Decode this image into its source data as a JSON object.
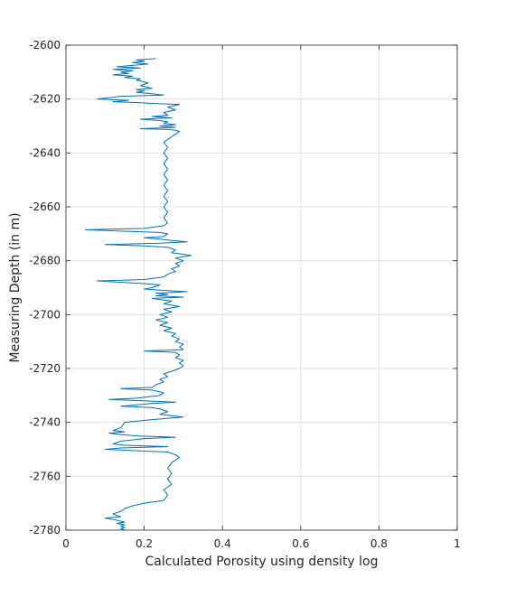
{
  "chart_data": {
    "type": "line",
    "title": "",
    "xlabel": "Calculated Porosity using density log",
    "ylabel": "Measuring Depth (in m)",
    "xlim": [
      0,
      1
    ],
    "ylim": [
      -2780,
      -2600
    ],
    "xticks": [
      "0",
      "0.2",
      "0.4",
      "0.6",
      "0.8",
      "1"
    ],
    "yticks": [
      "-2600",
      "-2620",
      "-2640",
      "-2660",
      "-2680",
      "-2700",
      "-2720",
      "-2740",
      "-2760",
      "-2780"
    ],
    "grid": true,
    "box": true,
    "legend": "none",
    "series": [
      {
        "color": "#0072BD",
        "points": [
          [
            0.23,
            -2605
          ],
          [
            0.18,
            -2605.5
          ],
          [
            0.2,
            -2606
          ],
          [
            0.17,
            -2606.5
          ],
          [
            0.21,
            -2607
          ],
          [
            0.13,
            -2608
          ],
          [
            0.19,
            -2608.5
          ],
          [
            0.12,
            -2609
          ],
          [
            0.17,
            -2609.5
          ],
          [
            0.14,
            -2610
          ],
          [
            0.16,
            -2610.5
          ],
          [
            0.12,
            -2611
          ],
          [
            0.17,
            -2611.5
          ],
          [
            0.15,
            -2612
          ],
          [
            0.19,
            -2612.5
          ],
          [
            0.18,
            -2613
          ],
          [
            0.21,
            -2614
          ],
          [
            0.19,
            -2615
          ],
          [
            0.22,
            -2616
          ],
          [
            0.18,
            -2616.5
          ],
          [
            0.2,
            -2617
          ],
          [
            0.18,
            -2617.5
          ],
          [
            0.22,
            -2618
          ],
          [
            0.25,
            -2618.5
          ],
          [
            0.14,
            -2619
          ],
          [
            0.08,
            -2620
          ],
          [
            0.16,
            -2620.5
          ],
          [
            0.12,
            -2621
          ],
          [
            0.18,
            -2621.3
          ],
          [
            0.22,
            -2621.6
          ],
          [
            0.29,
            -2622
          ],
          [
            0.26,
            -2623
          ],
          [
            0.28,
            -2624
          ],
          [
            0.25,
            -2625
          ],
          [
            0.26,
            -2626
          ],
          [
            0.22,
            -2626.5
          ],
          [
            0.27,
            -2627
          ],
          [
            0.19,
            -2627.5
          ],
          [
            0.24,
            -2628
          ],
          [
            0.26,
            -2628.5
          ],
          [
            0.25,
            -2629
          ],
          [
            0.28,
            -2629.5
          ],
          [
            0.24,
            -2630
          ],
          [
            0.28,
            -2630.5
          ],
          [
            0.19,
            -2631
          ],
          [
            0.26,
            -2631.3
          ],
          [
            0.28,
            -2631.6
          ],
          [
            0.29,
            -2632
          ],
          [
            0.27,
            -2634
          ],
          [
            0.25,
            -2636
          ],
          [
            0.26,
            -2638
          ],
          [
            0.25,
            -2640
          ],
          [
            0.26,
            -2642
          ],
          [
            0.25,
            -2644
          ],
          [
            0.26,
            -2646
          ],
          [
            0.25,
            -2648
          ],
          [
            0.26,
            -2650
          ],
          [
            0.25,
            -2652
          ],
          [
            0.26,
            -2654
          ],
          [
            0.25,
            -2656
          ],
          [
            0.26,
            -2658
          ],
          [
            0.25,
            -2660
          ],
          [
            0.26,
            -2662
          ],
          [
            0.25,
            -2664
          ],
          [
            0.26,
            -2666
          ],
          [
            0.25,
            -2667
          ],
          [
            0.2,
            -2668
          ],
          [
            0.05,
            -2668.5
          ],
          [
            0.14,
            -2669
          ],
          [
            0.24,
            -2669.5
          ],
          [
            0.26,
            -2670
          ],
          [
            0.25,
            -2671
          ],
          [
            0.2,
            -2671.5
          ],
          [
            0.24,
            -2672
          ],
          [
            0.27,
            -2672.5
          ],
          [
            0.31,
            -2673
          ],
          [
            0.24,
            -2673.5
          ],
          [
            0.1,
            -2674
          ],
          [
            0.2,
            -2674.5
          ],
          [
            0.26,
            -2675
          ],
          [
            0.28,
            -2676
          ],
          [
            0.27,
            -2677
          ],
          [
            0.32,
            -2678
          ],
          [
            0.28,
            -2679
          ],
          [
            0.3,
            -2680
          ],
          [
            0.28,
            -2681
          ],
          [
            0.29,
            -2682
          ],
          [
            0.27,
            -2683
          ],
          [
            0.28,
            -2684
          ],
          [
            0.26,
            -2685
          ],
          [
            0.25,
            -2686
          ],
          [
            0.2,
            -2687
          ],
          [
            0.08,
            -2687.5
          ],
          [
            0.14,
            -2688
          ],
          [
            0.2,
            -2688.5
          ],
          [
            0.24,
            -2689
          ],
          [
            0.22,
            -2690
          ],
          [
            0.2,
            -2690.5
          ],
          [
            0.25,
            -2691
          ],
          [
            0.31,
            -2691.5
          ],
          [
            0.23,
            -2692
          ],
          [
            0.26,
            -2692.5
          ],
          [
            0.23,
            -2693
          ],
          [
            0.3,
            -2693.5
          ],
          [
            0.22,
            -2694
          ],
          [
            0.27,
            -2695
          ],
          [
            0.25,
            -2696
          ],
          [
            0.29,
            -2697
          ],
          [
            0.25,
            -2698
          ],
          [
            0.27,
            -2699
          ],
          [
            0.24,
            -2700
          ],
          [
            0.26,
            -2701
          ],
          [
            0.23,
            -2702
          ],
          [
            0.26,
            -2703
          ],
          [
            0.24,
            -2704
          ],
          [
            0.27,
            -2705
          ],
          [
            0.25,
            -2706
          ],
          [
            0.28,
            -2707
          ],
          [
            0.27,
            -2708
          ],
          [
            0.29,
            -2709
          ],
          [
            0.28,
            -2710
          ],
          [
            0.3,
            -2711
          ],
          [
            0.29,
            -2712
          ],
          [
            0.3,
            -2713
          ],
          [
            0.2,
            -2713.5
          ],
          [
            0.28,
            -2714
          ],
          [
            0.29,
            -2715
          ],
          [
            0.28,
            -2716
          ],
          [
            0.3,
            -2717
          ],
          [
            0.29,
            -2718
          ],
          [
            0.3,
            -2719
          ],
          [
            0.29,
            -2720
          ],
          [
            0.27,
            -2721
          ],
          [
            0.25,
            -2722
          ],
          [
            0.26,
            -2723
          ],
          [
            0.24,
            -2724
          ],
          [
            0.25,
            -2725
          ],
          [
            0.23,
            -2726
          ],
          [
            0.22,
            -2727
          ],
          [
            0.14,
            -2727.5
          ],
          [
            0.22,
            -2728
          ],
          [
            0.25,
            -2729
          ],
          [
            0.24,
            -2730
          ],
          [
            0.18,
            -2731
          ],
          [
            0.11,
            -2731.5
          ],
          [
            0.2,
            -2732
          ],
          [
            0.28,
            -2732.5
          ],
          [
            0.22,
            -2733
          ],
          [
            0.14,
            -2734
          ],
          [
            0.22,
            -2734.5
          ],
          [
            0.24,
            -2735
          ],
          [
            0.26,
            -2736
          ],
          [
            0.24,
            -2737
          ],
          [
            0.3,
            -2738
          ],
          [
            0.22,
            -2739
          ],
          [
            0.15,
            -2740
          ],
          [
            0.14,
            -2742
          ],
          [
            0.12,
            -2743
          ],
          [
            0.15,
            -2743.5
          ],
          [
            0.11,
            -2744
          ],
          [
            0.14,
            -2744.5
          ],
          [
            0.18,
            -2745
          ],
          [
            0.28,
            -2745.5
          ],
          [
            0.2,
            -2746
          ],
          [
            0.14,
            -2747
          ],
          [
            0.12,
            -2748
          ],
          [
            0.15,
            -2748.5
          ],
          [
            0.26,
            -2749
          ],
          [
            0.14,
            -2749.5
          ],
          [
            0.1,
            -2750
          ],
          [
            0.18,
            -2750.5
          ],
          [
            0.26,
            -2751
          ],
          [
            0.28,
            -2752
          ],
          [
            0.29,
            -2753
          ],
          [
            0.27,
            -2755
          ],
          [
            0.26,
            -2757
          ],
          [
            0.27,
            -2759
          ],
          [
            0.26,
            -2761
          ],
          [
            0.27,
            -2763
          ],
          [
            0.25,
            -2765
          ],
          [
            0.26,
            -2767
          ],
          [
            0.25,
            -2769
          ],
          [
            0.2,
            -2770
          ],
          [
            0.17,
            -2771
          ],
          [
            0.15,
            -2772
          ],
          [
            0.14,
            -2773
          ],
          [
            0.12,
            -2774
          ],
          [
            0.14,
            -2775
          ],
          [
            0.1,
            -2775.5
          ],
          [
            0.12,
            -2776
          ],
          [
            0.15,
            -2777
          ],
          [
            0.13,
            -2777.5
          ],
          [
            0.15,
            -2778
          ],
          [
            0.14,
            -2778.5
          ],
          [
            0.15,
            -2779
          ],
          [
            0.14,
            -2779.5
          ],
          [
            0.15,
            -2780
          ]
        ]
      }
    ]
  }
}
